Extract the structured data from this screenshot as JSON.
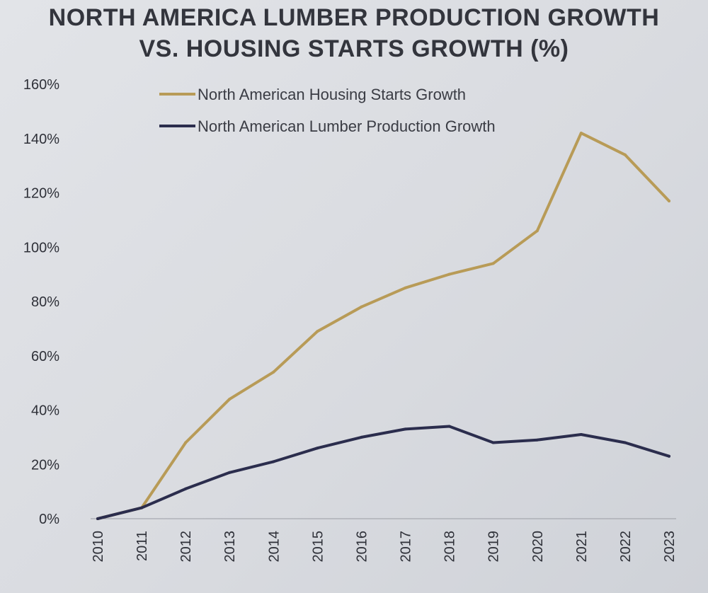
{
  "chart_data": {
    "type": "line",
    "title": "NORTH AMERICA LUMBER PRODUCTION GROWTH",
    "subtitle": "VS. HOUSING STARTS GROWTH (%)",
    "x": [
      "2010",
      "2011",
      "2012",
      "2013",
      "2014",
      "2015",
      "2016",
      "2017",
      "2018",
      "2019",
      "2020",
      "2021",
      "2022",
      "2023"
    ],
    "series": [
      {
        "name": "North American Housing Starts Growth",
        "color": "#b89b57",
        "values": [
          0,
          4,
          28,
          44,
          54,
          69,
          78,
          85,
          90,
          94,
          106,
          142,
          134,
          117
        ]
      },
      {
        "name": "North American Lumber Production Growth",
        "color": "#2b2d4d",
        "values": [
          0,
          4,
          11,
          17,
          21,
          26,
          30,
          33,
          34,
          28,
          29,
          31,
          28,
          23
        ]
      }
    ],
    "ylim": [
      0,
      160
    ],
    "yticks": [
      "0%",
      "20%",
      "40%",
      "60%",
      "80%",
      "100%",
      "120%",
      "140%",
      "160%"
    ],
    "ytick_values": [
      0,
      20,
      40,
      60,
      80,
      100,
      120,
      140,
      160
    ],
    "grid": false,
    "legend_position": "top-center"
  }
}
